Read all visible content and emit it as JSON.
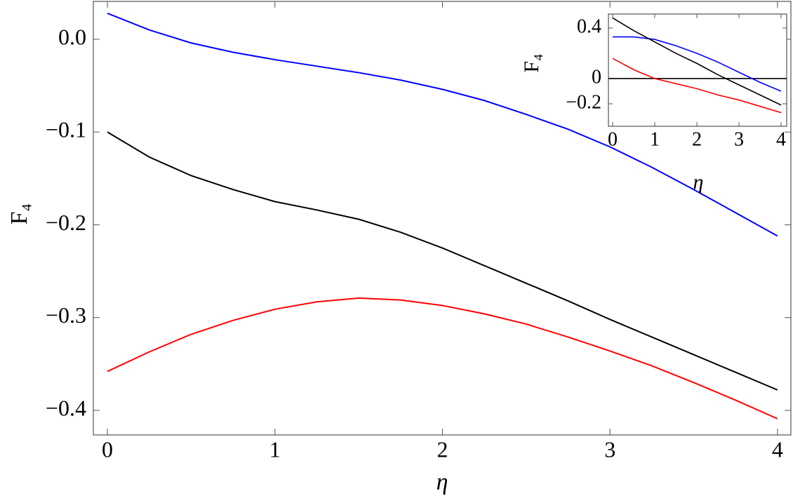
{
  "chart_data": [
    {
      "type": "line",
      "xlabel": "η",
      "ylabel": "F₄",
      "x": [
        0,
        0.25,
        0.5,
        0.75,
        1,
        1.25,
        1.5,
        1.75,
        2,
        2.25,
        2.5,
        2.75,
        3,
        3.25,
        3.5,
        3.75,
        4
      ],
      "series": [
        {
          "color": "#0000ff",
          "values": [
            0.028,
            0.01,
            -0.004,
            -0.014,
            -0.022,
            -0.029,
            -0.036,
            -0.044,
            -0.054,
            -0.066,
            -0.081,
            -0.097,
            -0.116,
            -0.138,
            -0.162,
            -0.187,
            -0.212
          ]
        },
        {
          "color": "#000000",
          "values": [
            -0.1,
            -0.127,
            -0.147,
            -0.162,
            -0.175,
            -0.184,
            -0.194,
            -0.208,
            -0.225,
            -0.244,
            -0.263,
            -0.282,
            -0.302,
            -0.321,
            -0.34,
            -0.359,
            -0.378
          ]
        },
        {
          "color": "#ff0000",
          "values": [
            -0.358,
            -0.337,
            -0.318,
            -0.303,
            -0.291,
            -0.283,
            -0.279,
            -0.281,
            -0.287,
            -0.296,
            -0.307,
            -0.321,
            -0.336,
            -0.352,
            -0.37,
            -0.389,
            -0.409
          ]
        }
      ],
      "xlim": [
        -0.084,
        4.08
      ],
      "ylim": [
        -0.4265,
        0.0408
      ],
      "xticks": [
        0,
        1,
        2,
        3,
        4
      ],
      "yticks": [
        {
          "value": 0,
          "label": "0.0"
        },
        {
          "value": -0.1,
          "label": "−0.1"
        },
        {
          "value": -0.2,
          "label": "−0.2"
        },
        {
          "value": -0.3,
          "label": "−0.3"
        },
        {
          "value": -0.4,
          "label": "−0.4"
        }
      ],
      "zero_line": false
    },
    {
      "type": "line",
      "xlabel": "η",
      "ylabel": "F₄",
      "x": [
        0,
        0.5,
        1,
        1.5,
        2,
        2.5,
        3,
        3.5,
        4
      ],
      "series": [
        {
          "color": "#0000ff",
          "values": [
            0.33,
            0.33,
            0.31,
            0.26,
            0.2,
            0.13,
            0.05,
            -0.03,
            -0.1
          ]
        },
        {
          "color": "#000000",
          "values": [
            0.48,
            0.38,
            0.29,
            0.2,
            0.12,
            0.03,
            -0.05,
            -0.13,
            -0.21
          ]
        },
        {
          "color": "#ff0000",
          "values": [
            0.16,
            0.07,
            0.0,
            -0.04,
            -0.08,
            -0.13,
            -0.17,
            -0.22,
            -0.27
          ]
        }
      ],
      "xlim": [
        -0.1,
        4.133
      ],
      "ylim": [
        -0.378,
        0.511
      ],
      "xticks": [
        0,
        1,
        2,
        3,
        4
      ],
      "yticks": [
        0.4,
        0,
        {
          "value": -0.2,
          "label": "−0.2"
        }
      ],
      "zero_line": true
    }
  ]
}
